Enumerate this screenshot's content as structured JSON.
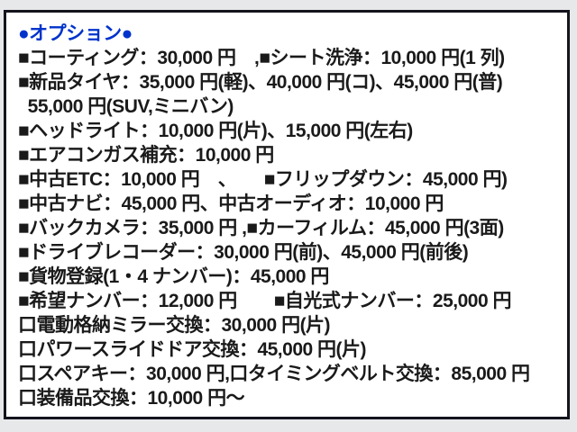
{
  "colors": {
    "page_bg": "#e7e8ea",
    "panel_bg": "#ffffff",
    "panel_border": "#14141d",
    "header_blue": "#0033cc",
    "text": "#1a1a1a"
  },
  "panel": {
    "title": "●オプション●",
    "lines": [
      "■コーティング：30,000 円　,■シート洗浄：10,000 円(1 列)",
      "■新品タイヤ：35,000 円(軽)、40,000 円(コ)、45,000 円(普)",
      "  55,000 円(SUV,ミニバン)",
      "■ヘッドライト：10,000 円(片)、15,000 円(左右)",
      "■エアコンガス補充：10,000 円",
      "■中古ETC：10,000 円　、　　■フリップダウン：45,000 円)",
      "■中古ナビ：45,000 円、中古オーディオ：10,000 円",
      "■バックカメラ：35,000 円 ,■カーフィルム：45,000 円(3面)",
      "■ドライブレコーダー：30,000 円(前)、45,000 円(前後)",
      "■貨物登録(1・4 ナンバー)：45,000 円",
      "■希望ナンバー：12,000 円　　■自光式ナンバー：25,000 円",
      "口電動格納ミラー交換：30,000 円(片)",
      "口パワースライドドア交換：45,000 円(片)",
      "口スペアキー：30,000 円,口タイミングベルト交換：85,000 円",
      "口装備品交換：10,000 円～"
    ]
  }
}
